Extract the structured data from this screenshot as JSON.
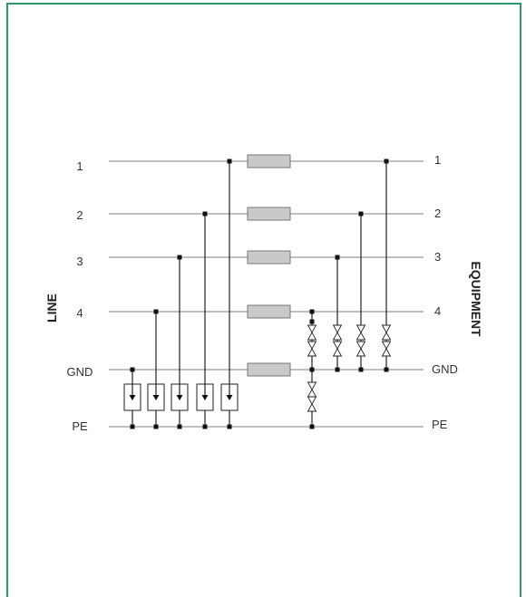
{
  "frame": {
    "border_color": "#2a9a6a"
  },
  "side_labels": {
    "left": "LINE",
    "right": "EQUIPMENT"
  },
  "rows": [
    {
      "id": "1",
      "left": "1",
      "right": "1"
    },
    {
      "id": "2",
      "left": "2",
      "right": "2"
    },
    {
      "id": "3",
      "left": "3",
      "right": "3"
    },
    {
      "id": "4",
      "left": "4",
      "right": "4"
    },
    {
      "id": "gnd",
      "left": "GND",
      "right": "GND"
    },
    {
      "id": "pe",
      "left": "PE",
      "right": "PE"
    }
  ],
  "colors": {
    "resistor_fill": "#c9c9c9",
    "wire": "#9a9a9a",
    "node": "#111111"
  }
}
